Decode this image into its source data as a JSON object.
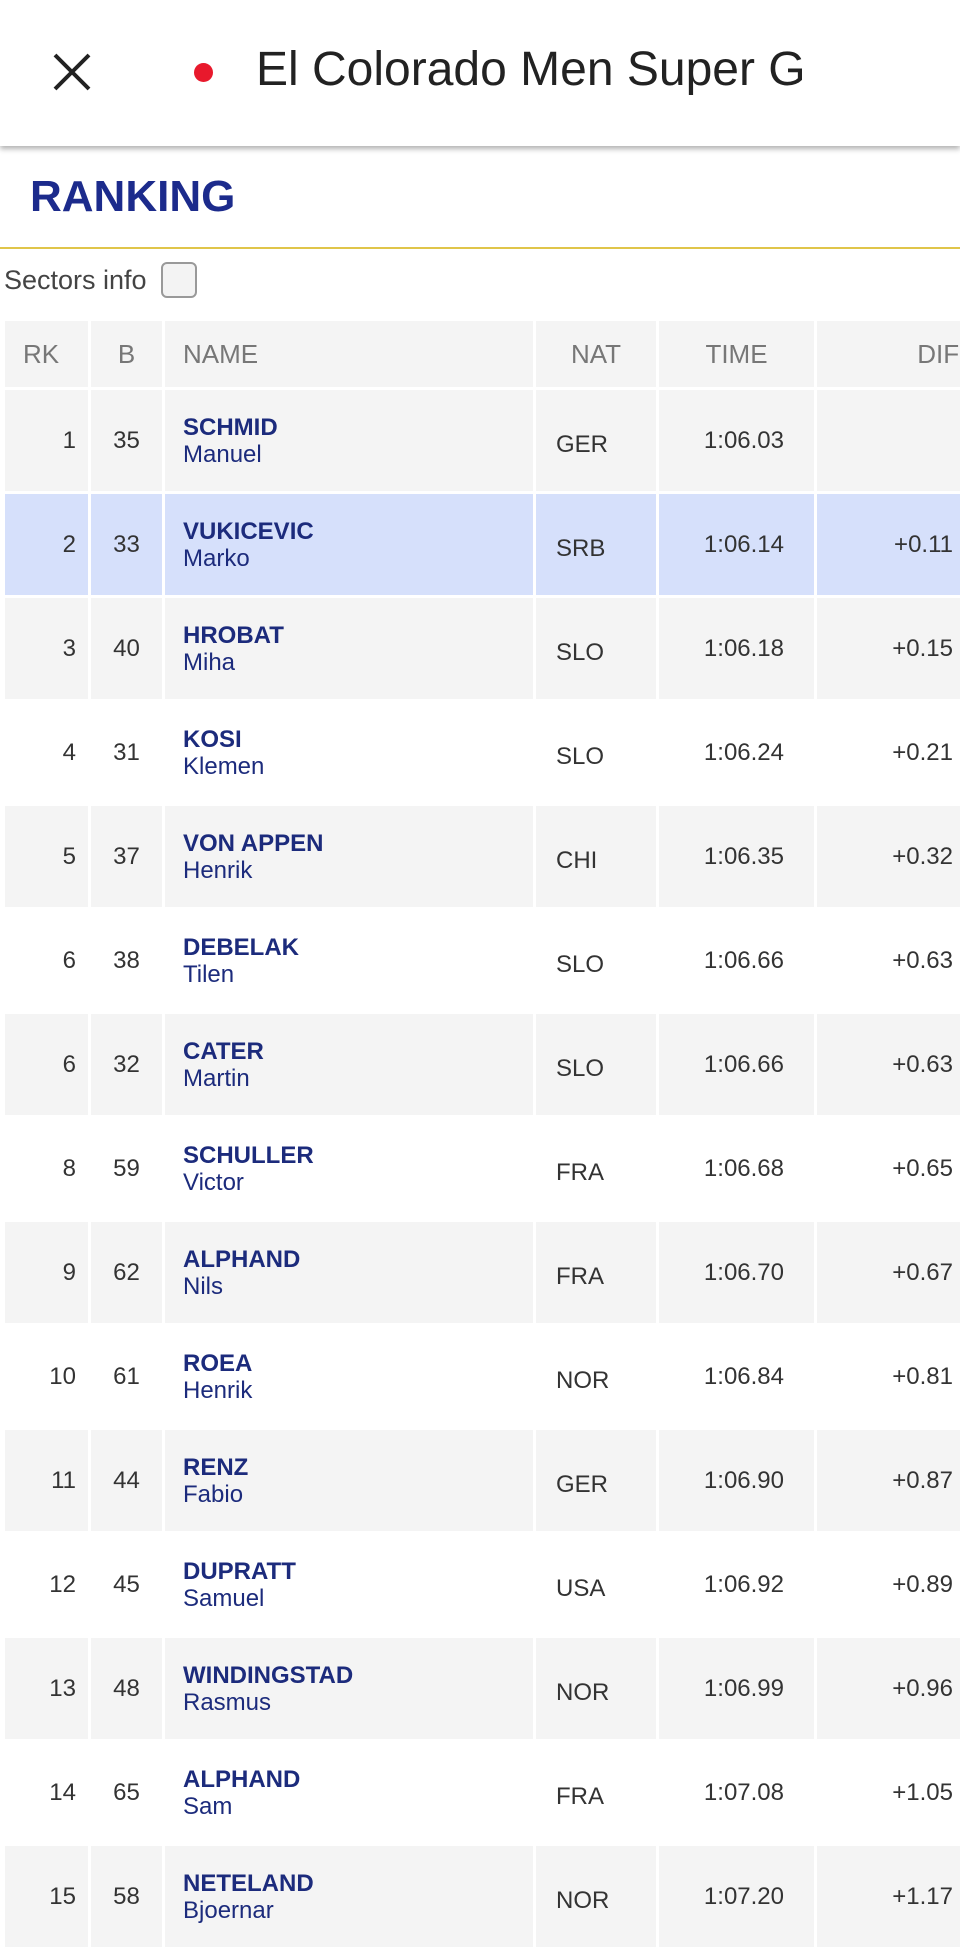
{
  "header": {
    "title": "El Colorado Men Super G"
  },
  "ranking": {
    "title": "RANKING"
  },
  "sectors": {
    "label": "Sectors info"
  },
  "table": {
    "columns": [
      "RK",
      "B",
      "NAME",
      "NAT",
      "TIME",
      "DIFF"
    ],
    "rows": [
      {
        "rk": 1,
        "bib": 35,
        "last": "SCHMID",
        "first": "Manuel",
        "nat": "GER",
        "time": "1:06.03"
      },
      {
        "rk": 2,
        "bib": 33,
        "last": "VUKICEVIC",
        "first": "Marko",
        "nat": "SRB",
        "time": "1:06.14",
        "diff": "+0.11"
      },
      {
        "rk": 3,
        "bib": 40,
        "last": "HROBAT",
        "first": "Miha",
        "nat": "SLO",
        "time": "1:06.18",
        "diff": "+0.15"
      },
      {
        "rk": 4,
        "bib": 31,
        "last": "KOSI",
        "first": "Klemen",
        "nat": "SLO",
        "time": "1:06.24",
        "diff": "+0.21"
      },
      {
        "rk": 5,
        "bib": 37,
        "last": "VON APPEN",
        "first": "Henrik",
        "nat": "CHI",
        "time": "1:06.35",
        "diff": "+0.32"
      },
      {
        "rk": 6,
        "bib": 38,
        "last": "DEBELAK",
        "first": "Tilen",
        "nat": "SLO",
        "time": "1:06.66",
        "diff": "+0.63"
      },
      {
        "rk": 6,
        "bib": 32,
        "last": "CATER",
        "first": "Martin",
        "nat": "SLO",
        "time": "1:06.66",
        "diff": "+0.63"
      },
      {
        "rk": 8,
        "bib": 59,
        "last": "SCHULLER",
        "first": "Victor",
        "nat": "FRA",
        "time": "1:06.68",
        "diff": "+0.65"
      },
      {
        "rk": 9,
        "bib": 62,
        "last": "ALPHAND",
        "first": "Nils",
        "nat": "FRA",
        "time": "1:06.70",
        "diff": "+0.67"
      },
      {
        "rk": 10,
        "bib": 61,
        "last": "ROEA",
        "first": "Henrik",
        "nat": "NOR",
        "time": "1:06.84",
        "diff": "+0.81"
      },
      {
        "rk": 11,
        "bib": 44,
        "last": "RENZ",
        "first": "Fabio",
        "nat": "GER",
        "time": "1:06.90",
        "diff": "+0.87"
      },
      {
        "rk": 12,
        "bib": 45,
        "last": "DUPRATT",
        "first": "Samuel",
        "nat": "USA",
        "time": "1:06.92",
        "diff": "+0.89"
      },
      {
        "rk": 13,
        "bib": 48,
        "last": "WINDINGSTAD",
        "first": "Rasmus",
        "nat": "NOR",
        "time": "1:06.99",
        "diff": "+0.96"
      },
      {
        "rk": 14,
        "bib": 65,
        "last": "ALPHAND",
        "first": "Sam",
        "nat": "FRA",
        "time": "1:07.08",
        "diff": "+1.05"
      },
      {
        "rk": 15,
        "bib": 58,
        "last": "NETELAND",
        "first": "Bjoernar",
        "nat": "NOR",
        "time": "1:07.20",
        "diff": "+1.17"
      }
    ]
  }
}
